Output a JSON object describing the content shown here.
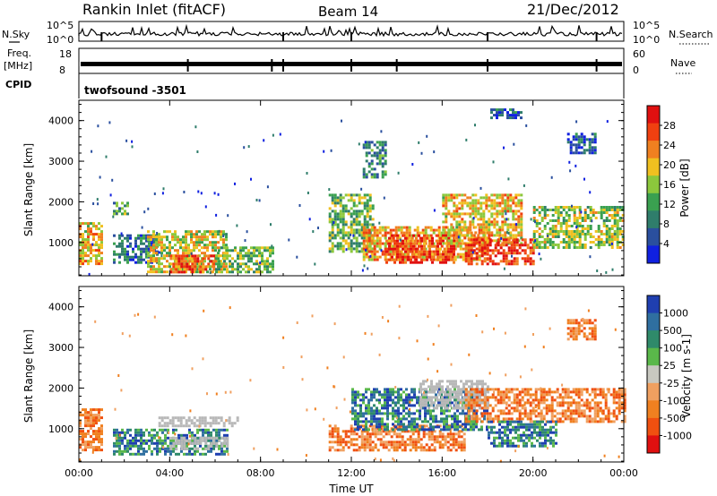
{
  "header": {
    "station": "Rankin Inlet (fitACF)",
    "beam": "Beam 14",
    "date": "21/Dec/2012"
  },
  "status_panels": {
    "nsky_label": "N.Sky",
    "nsearch_label": "N.Search",
    "nsky_ticks": [
      "10^5",
      "10^0"
    ],
    "nsearch_ticks": [
      "10^5",
      "10^0"
    ],
    "freq_label": "Freq.",
    "freq_unit": "[MHz]",
    "freq_ticks": [
      "18",
      "8"
    ],
    "nave_label": "Nave",
    "nave_ticks": [
      "60",
      "0"
    ],
    "cpid_label": "CPID",
    "cpid_value": "twofsound -3501"
  },
  "colors": {
    "power_scale": [
      "#1020e0",
      "#2a4f9e",
      "#2f7d6b",
      "#3aa050",
      "#8cc83c",
      "#f0c020",
      "#f08020",
      "#f04010",
      "#e01010"
    ],
    "velocity_scale": [
      "#1f3fb0",
      "#2f6fa0",
      "#2f8a6a",
      "#5ab84a",
      "#c8c8c0",
      "#f0a060",
      "#f08020",
      "#f05010",
      "#e01010"
    ],
    "ground_scatter": "#b8b8b8"
  },
  "chart_data": [
    {
      "type": "heatmap",
      "panel": "power",
      "ylabel": "Slant Range [km]",
      "xlabel": "",
      "x_ticks": [
        "00:00",
        "04:00",
        "08:00",
        "12:00",
        "16:00",
        "20:00",
        "00:00"
      ],
      "x_range_hours": [
        0,
        24
      ],
      "y_ticks": [
        1000,
        2000,
        3000,
        4000
      ],
      "y_range_km": [
        180,
        4500
      ],
      "colorbar": {
        "label": "Power [dB]",
        "ticks": [
          4,
          8,
          12,
          16,
          20,
          24,
          28
        ],
        "range": [
          0,
          32
        ]
      },
      "regions": [
        {
          "t0": 0.0,
          "t1": 1.0,
          "r0": 500,
          "r1": 1500,
          "level": 20
        },
        {
          "t0": 1.5,
          "t1": 3.5,
          "r0": 500,
          "r1": 1200,
          "level": 8
        },
        {
          "t0": 3.0,
          "t1": 6.5,
          "r0": 300,
          "r1": 1300,
          "level": 18
        },
        {
          "t0": 4.0,
          "t1": 6.0,
          "r0": 300,
          "r1": 700,
          "level": 26
        },
        {
          "t0": 6.0,
          "t1": 8.5,
          "r0": 300,
          "r1": 900,
          "level": 14
        },
        {
          "t0": 11.0,
          "t1": 13.0,
          "r0": 800,
          "r1": 2200,
          "level": 14
        },
        {
          "t0": 12.5,
          "t1": 18.0,
          "r0": 600,
          "r1": 1400,
          "level": 22
        },
        {
          "t0": 13.5,
          "t1": 16.5,
          "r0": 500,
          "r1": 1200,
          "level": 27
        },
        {
          "t0": 16.0,
          "t1": 19.5,
          "r0": 1000,
          "r1": 2200,
          "level": 20
        },
        {
          "t0": 17.0,
          "t1": 20.0,
          "r0": 500,
          "r1": 1100,
          "level": 28
        },
        {
          "t0": 20.0,
          "t1": 24.0,
          "r0": 900,
          "r1": 1900,
          "level": 16
        },
        {
          "t0": 21.5,
          "t1": 22.8,
          "r0": 3200,
          "r1": 3700,
          "level": 6
        },
        {
          "t0": 18.0,
          "t1": 19.5,
          "r0": 4100,
          "r1": 4300,
          "level": 6
        },
        {
          "t0": 12.5,
          "t1": 13.5,
          "r0": 2600,
          "r1": 3500,
          "level": 10
        },
        {
          "t0": 1.5,
          "t1": 2.2,
          "r0": 1700,
          "r1": 2000,
          "level": 12
        }
      ]
    },
    {
      "type": "heatmap",
      "panel": "velocity",
      "ylabel": "Slant Range [km]",
      "xlabel": "Time UT",
      "x_ticks": [
        "00:00",
        "04:00",
        "08:00",
        "12:00",
        "16:00",
        "20:00",
        "00:00"
      ],
      "x_range_hours": [
        0,
        24
      ],
      "y_ticks": [
        1000,
        2000,
        3000,
        4000
      ],
      "y_range_km": [
        180,
        4500
      ],
      "colorbar": {
        "label": "Velocity [m s-1]",
        "ticks": [
          "1000",
          "500",
          "100",
          "25",
          "-25",
          "-100",
          "-500",
          "-1000"
        ]
      },
      "regions": [
        {
          "t0": 0.0,
          "t1": 1.0,
          "r0": 500,
          "r1": 1500,
          "class": "neg"
        },
        {
          "t0": 1.5,
          "t1": 6.5,
          "r0": 400,
          "r1": 1000,
          "class": "pos"
        },
        {
          "t0": 3.5,
          "t1": 7.0,
          "r0": 1100,
          "r1": 1300,
          "class": "ground"
        },
        {
          "t0": 4.0,
          "t1": 6.5,
          "r0": 500,
          "r1": 800,
          "class": "ground"
        },
        {
          "t0": 11.0,
          "t1": 17.0,
          "r0": 500,
          "r1": 1100,
          "class": "neg"
        },
        {
          "t0": 12.0,
          "t1": 18.0,
          "r0": 1000,
          "r1": 2000,
          "class": "pos"
        },
        {
          "t0": 15.0,
          "t1": 18.0,
          "r0": 1500,
          "r1": 2200,
          "class": "ground"
        },
        {
          "t0": 17.0,
          "t1": 24.0,
          "r0": 1200,
          "r1": 2000,
          "class": "neg"
        },
        {
          "t0": 18.0,
          "t1": 21.0,
          "r0": 600,
          "r1": 1200,
          "class": "pos"
        },
        {
          "t0": 21.5,
          "t1": 22.8,
          "r0": 3200,
          "r1": 3700,
          "class": "neg"
        }
      ]
    }
  ]
}
